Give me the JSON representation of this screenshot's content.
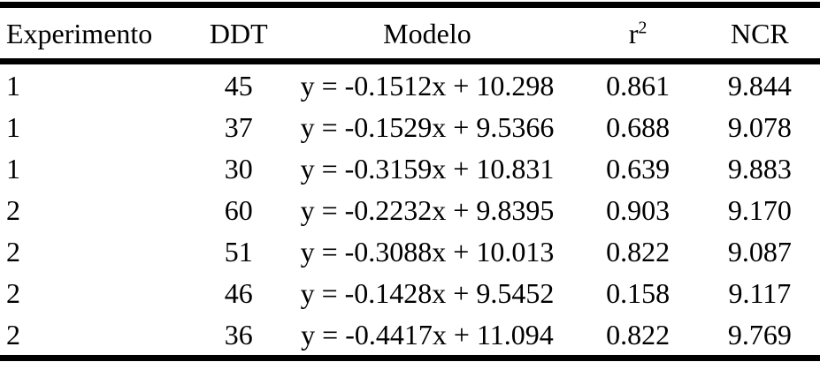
{
  "table": {
    "headers": {
      "experimento": "Experimento",
      "ddt": "DDT",
      "modelo": "Modelo",
      "r2_base": "r",
      "r2_sup": "2",
      "ncr": "NCR"
    },
    "rows": [
      {
        "experimento": "1",
        "ddt": "45",
        "modelo": "y = -0.1512x + 10.298",
        "r2": "0.861",
        "ncr": "9.844"
      },
      {
        "experimento": "1",
        "ddt": "37",
        "modelo": "y = -0.1529x + 9.5366",
        "r2": "0.688",
        "ncr": "9.078"
      },
      {
        "experimento": "1",
        "ddt": "30",
        "modelo": "y = -0.3159x + 10.831",
        "r2": "0.639",
        "ncr": "9.883"
      },
      {
        "experimento": "2",
        "ddt": "60",
        "modelo": "y = -0.2232x + 9.8395",
        "r2": "0.903",
        "ncr": "9.170"
      },
      {
        "experimento": "2",
        "ddt": "51",
        "modelo": "y = -0.3088x + 10.013",
        "r2": "0.822",
        "ncr": "9.087"
      },
      {
        "experimento": "2",
        "ddt": "46",
        "modelo": "y = -0.1428x + 9.5452",
        "r2": "0.158",
        "ncr": "9.117"
      },
      {
        "experimento": "2",
        "ddt": "36",
        "modelo": "y = -0.4417x + 11.094",
        "r2": "0.822",
        "ncr": "9.769"
      }
    ],
    "colors": {
      "text": "#000000",
      "rule": "#000000",
      "background": "#ffffff"
    }
  }
}
